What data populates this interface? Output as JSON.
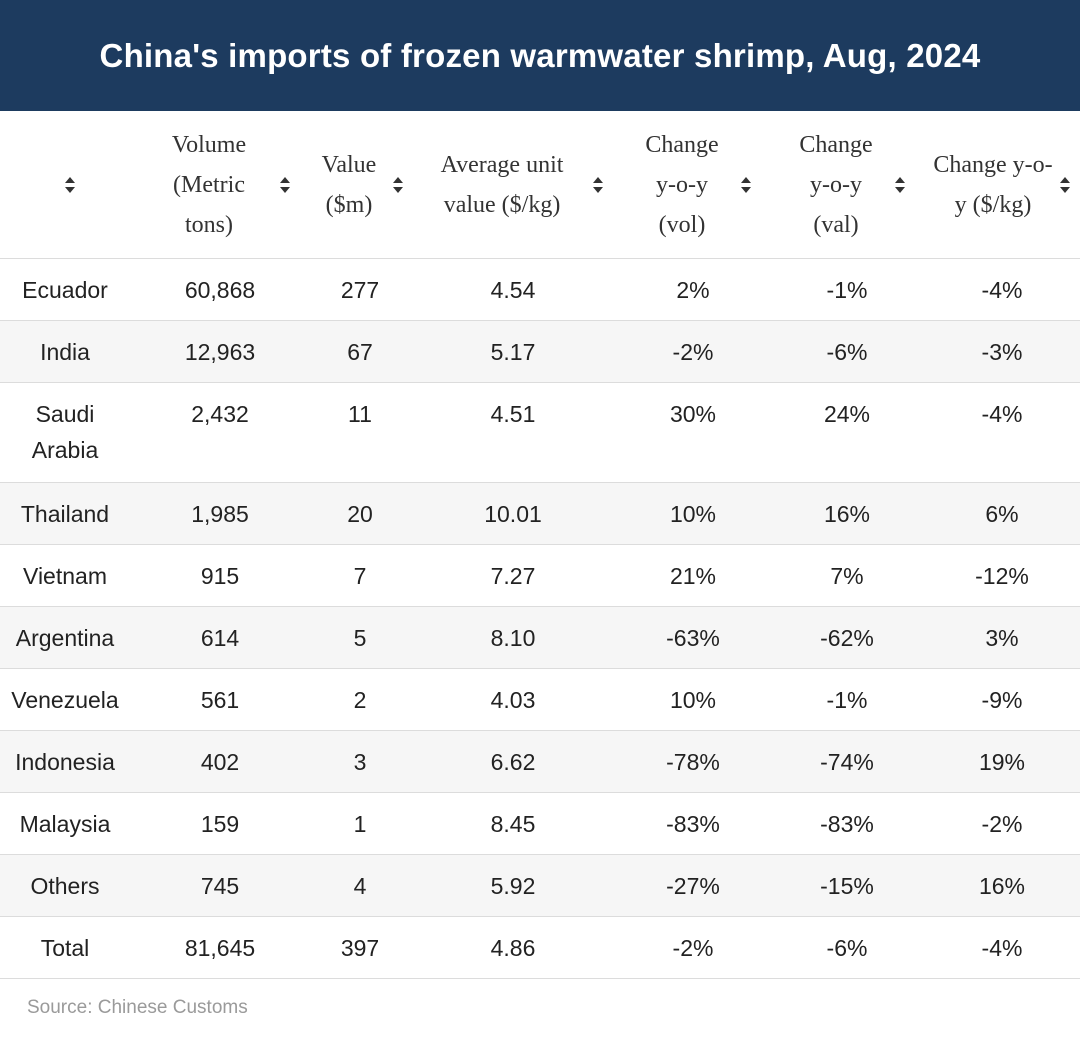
{
  "title": "China's imports of frozen warmwater shrimp, Aug, 2024",
  "chart_data": {
    "type": "table",
    "title": "China's imports of frozen warmwater shrimp, Aug, 2024",
    "columns": [
      "",
      "Volume (Metric tons)",
      "Value ($m)",
      "Average unit value ($/kg)",
      "Change y-o-y (vol)",
      "Change y-o-y (val)",
      "Change y-o-y ($/kg)"
    ],
    "rows": [
      [
        "Ecuador",
        "60,868",
        "277",
        "4.54",
        "2%",
        "-1%",
        "-4%"
      ],
      [
        "India",
        "12,963",
        "67",
        "5.17",
        "-2%",
        "-6%",
        "-3%"
      ],
      [
        "Saudi Arabia",
        "2,432",
        "11",
        "4.51",
        "30%",
        "24%",
        "-4%"
      ],
      [
        "Thailand",
        "1,985",
        "20",
        "10.01",
        "10%",
        "16%",
        "6%"
      ],
      [
        "Vietnam",
        "915",
        "7",
        "7.27",
        "21%",
        "7%",
        "-12%"
      ],
      [
        "Argentina",
        "614",
        "5",
        "8.10",
        "-63%",
        "-62%",
        "3%"
      ],
      [
        "Venezuela",
        "561",
        "2",
        "4.03",
        "10%",
        "-1%",
        "-9%"
      ],
      [
        "Indonesia",
        "402",
        "3",
        "6.62",
        "-78%",
        "-74%",
        "19%"
      ],
      [
        "Malaysia",
        "159",
        "1",
        "8.45",
        "-83%",
        "-83%",
        "-2%"
      ],
      [
        "Others",
        "745",
        "4",
        "5.92",
        "-27%",
        "-15%",
        "16%"
      ],
      [
        "Total",
        "81,645",
        "397",
        "4.86",
        "-2%",
        "-6%",
        "-4%"
      ]
    ]
  },
  "source": "Source: Chinese Customs",
  "icons": {
    "sort": "sort-arrows-icon"
  },
  "colors": {
    "banner": "#1d3b5f",
    "row_alt": "#f6f6f6",
    "border": "#dcdcdc"
  }
}
